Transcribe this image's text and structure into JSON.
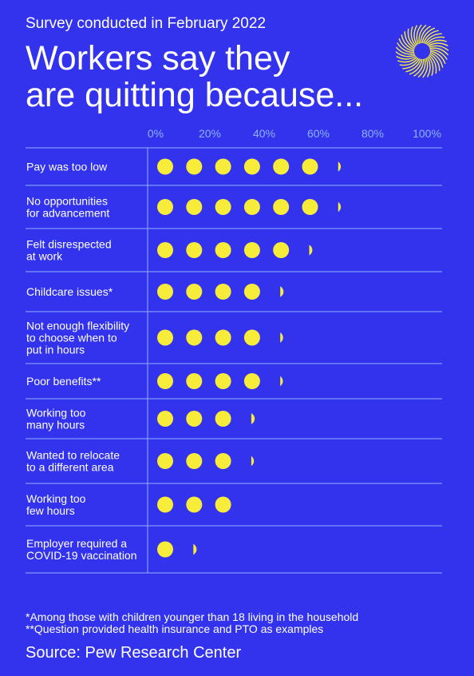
{
  "header": {
    "subtitle": "Survey conducted in February 2022",
    "title_line1": "Workers say they",
    "title_line2": "are quitting because..."
  },
  "chart_data": {
    "type": "dot-bar",
    "xlim": [
      0,
      100
    ],
    "x_ticks": [
      "0%",
      "20%",
      "40%",
      "60%",
      "80%",
      "100%"
    ],
    "categories": [
      {
        "label": [
          "Pay was too low"
        ],
        "value": 63
      },
      {
        "label": [
          "No opportunities",
          "for advancement"
        ],
        "value": 63
      },
      {
        "label": [
          "Felt disrespected",
          "at work"
        ],
        "value": 57
      },
      {
        "label": [
          "Childcare issues*"
        ],
        "value": 48
      },
      {
        "label": [
          "Not enough flexibility",
          "to choose when to",
          "put in hours"
        ],
        "value": 45
      },
      {
        "label": [
          "Poor benefits**"
        ],
        "value": 43
      },
      {
        "label": [
          "Working too",
          "many hours"
        ],
        "value": 39
      },
      {
        "label": [
          "Wanted to relocate",
          "to a different area"
        ],
        "value": 33
      },
      {
        "label": [
          "Working too",
          "few hours"
        ],
        "value": 30
      },
      {
        "label": [
          "Employer required a",
          "COVID-19 vaccination"
        ],
        "value": 18
      }
    ],
    "dot_color": "#f8ec3a",
    "line_color": "#8fb2ff"
  },
  "footnotes": {
    "note1": "*Among those with children younger than 18 living in the household",
    "note2": "**Question provided health insurance and PTO as examples"
  },
  "source": "Source: Pew Research Center",
  "colors": {
    "background": "#3333ee",
    "accent": "#f8ec3a"
  },
  "icons": {
    "logo": "sunburst-logo-icon"
  }
}
